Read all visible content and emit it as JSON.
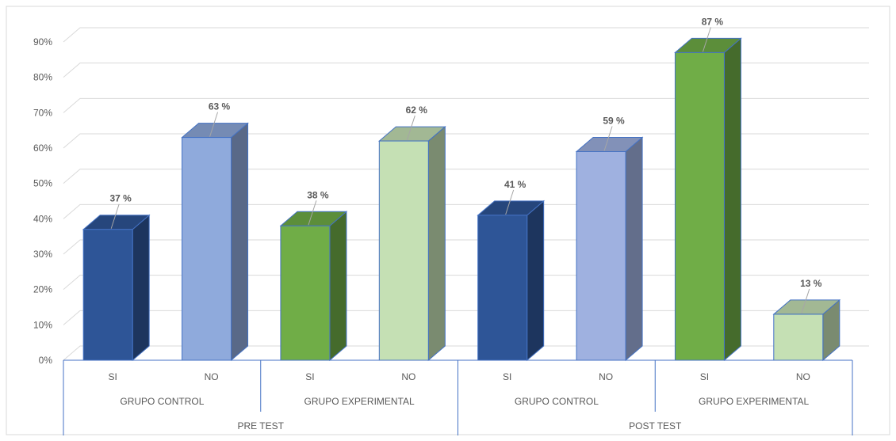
{
  "chart_data": {
    "type": "bar",
    "title": "",
    "xlabel": "",
    "ylabel": "",
    "ylim": [
      0,
      90
    ],
    "yticks": [
      "0%",
      "10%",
      "20%",
      "30%",
      "40%",
      "50%",
      "60%",
      "70%",
      "80%",
      "90%"
    ],
    "grid": true,
    "three_d": true,
    "categories": [
      "SI",
      "NO",
      "SI",
      "NO",
      "SI",
      "NO",
      "SI",
      "NO"
    ],
    "groups": [
      "GRUPO CONTROL",
      "GRUPO EXPERIMENTAL",
      "GRUPO CONTROL",
      "GRUPO EXPERIMENTAL"
    ],
    "phases": [
      "PRE TEST",
      "POST TEST"
    ],
    "values": [
      37,
      63,
      38,
      62,
      41,
      59,
      87,
      13
    ],
    "data_labels": [
      "37 %",
      "63 %",
      "38 %",
      "62 %",
      "41 %",
      "59 %",
      "87 %",
      "13 %"
    ],
    "colors": [
      "#2e5597",
      "#8faadc",
      "#70ad47",
      "#c5e0b4",
      "#2e5597",
      "#9fb1e0",
      "#70ad47",
      "#c5e0b4"
    ]
  }
}
